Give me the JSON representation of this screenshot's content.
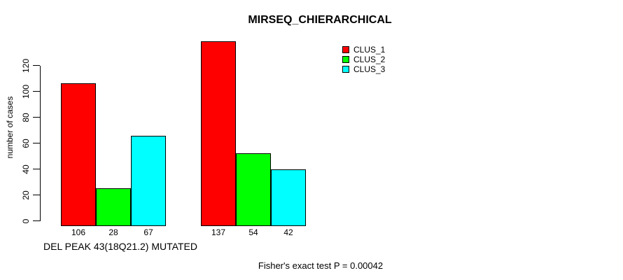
{
  "chart_data": {
    "type": "bar",
    "title": "MIRSEQ_CHIERARCHICAL",
    "ylabel": "number of cases",
    "xlabel": "DEL PEAK 43(18Q21.2) MUTATED",
    "annotation": "Fisher's exact test P = 0.00042",
    "yticks": [
      0,
      20,
      40,
      60,
      80,
      100,
      120
    ],
    "ylim": [
      0,
      140
    ],
    "grid": false,
    "legend_position": "top-right",
    "background_color": "#ffffff",
    "axis_color": "#000000",
    "n_groups": 2,
    "series": [
      {
        "name": "CLUS_1",
        "color": "#FF0000",
        "values": [
          106,
          137
        ]
      },
      {
        "name": "CLUS_2",
        "color": "#00FF00",
        "values": [
          28,
          54
        ]
      },
      {
        "name": "CLUS_3",
        "color": "#00FFFF",
        "values": [
          67,
          42
        ]
      }
    ],
    "bar_value_labels": [
      [
        106,
        28,
        67
      ],
      [
        137,
        54,
        42
      ]
    ]
  }
}
